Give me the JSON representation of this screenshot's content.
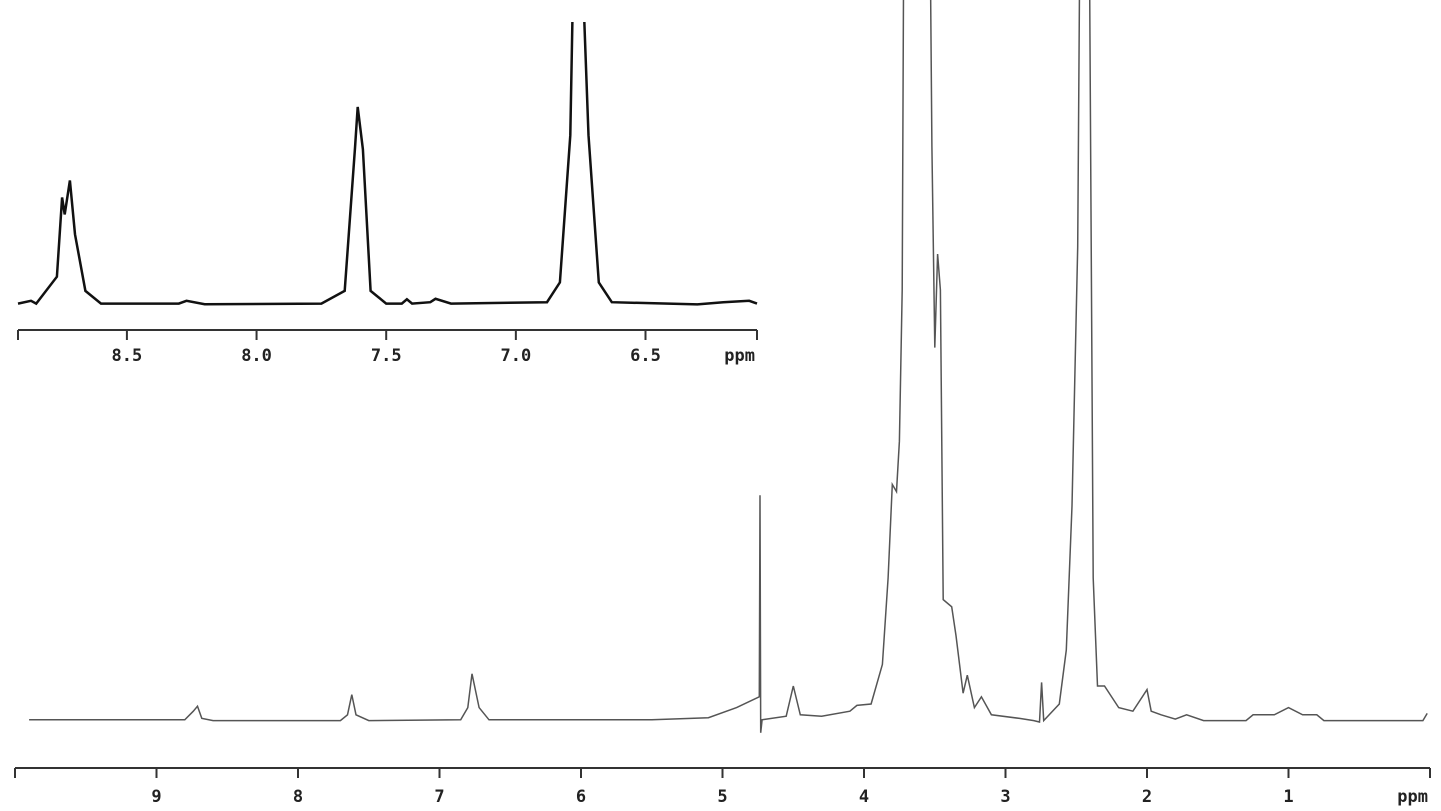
{
  "chart_data": [
    {
      "type": "line",
      "xlabel": "ppm",
      "color": "#555555",
      "xlim": [
        10,
        0
      ],
      "ylim": [
        0,
        100
      ],
      "xticks": [
        9,
        8,
        7,
        6,
        5,
        4,
        3,
        2,
        1
      ],
      "x": [
        9.9,
        8.8,
        8.74,
        8.71,
        8.68,
        8.6,
        7.7,
        7.65,
        7.62,
        7.59,
        7.5,
        6.85,
        6.8,
        6.77,
        6.72,
        6.65,
        5.5,
        5.1,
        4.9,
        4.74,
        4.735,
        4.73,
        4.72,
        4.55,
        4.5,
        4.45,
        4.3,
        4.1,
        4.05,
        3.95,
        3.87,
        3.83,
        3.8,
        3.77,
        3.75,
        3.73,
        3.71,
        3.55,
        3.52,
        3.5,
        3.48,
        3.46,
        3.44,
        3.38,
        3.35,
        3.3,
        3.27,
        3.22,
        3.17,
        3.1,
        2.9,
        2.8,
        2.76,
        2.745,
        2.73,
        2.62,
        2.57,
        2.53,
        2.49,
        2.46,
        2.42,
        2.38,
        2.35,
        2.3,
        2.2,
        2.1,
        2.0,
        1.97,
        1.9,
        1.8,
        1.72,
        1.6,
        1.3,
        1.25,
        1.1,
        1.0,
        0.9,
        0.8,
        0.75,
        0.3,
        0.05,
        0.02
      ],
      "values": [
        0.3,
        0.3,
        1.5,
        2.2,
        0.5,
        0.2,
        0.2,
        1,
        3.8,
        1,
        0.2,
        0.3,
        2,
        6.7,
        2,
        0.3,
        0.3,
        0.6,
        2,
        3.5,
        31.5,
        -1.5,
        0.3,
        0.8,
        5,
        1,
        0.8,
        1.5,
        2.3,
        2.5,
        8,
        20,
        33,
        32,
        39,
        60,
        150,
        150,
        80,
        52,
        65,
        60,
        17,
        16,
        12,
        4,
        6.5,
        2,
        3.5,
        1,
        0.5,
        0.2,
        0,
        5.5,
        0.2,
        2.5,
        10,
        30,
        66,
        150,
        150,
        20,
        5,
        5,
        2,
        1.5,
        4.5,
        1.5,
        1,
        0.4,
        1,
        0.2,
        0.2,
        1,
        1,
        2,
        1,
        1,
        0.2,
        0.2,
        0.2,
        1.2
      ]
    },
    {
      "type": "line",
      "xlabel": "ppm",
      "color": "#111111",
      "xlim": [
        8.92,
        6.07
      ],
      "ylim": [
        0,
        100
      ],
      "xticks": [
        8.5,
        {
          "value": 8,
          "label": "8.0"
        },
        7.5,
        {
          "value": 7,
          "label": "7.0"
        },
        6.5
      ],
      "x": [
        8.92,
        8.87,
        8.85,
        8.77,
        8.75,
        8.74,
        8.72,
        8.7,
        8.66,
        8.6,
        8.3,
        8.27,
        8.2,
        7.75,
        7.66,
        7.62,
        7.61,
        7.59,
        7.56,
        7.54,
        7.5,
        7.44,
        7.42,
        7.4,
        7.33,
        7.31,
        7.25,
        6.88,
        6.83,
        6.79,
        6.78,
        6.74,
        6.72,
        6.68,
        6.63,
        6.3,
        6.2,
        6.1,
        6.07
      ],
      "values": [
        0.5,
        1.5,
        0.5,
        10,
        38,
        32,
        44,
        25,
        5,
        0.5,
        0.5,
        1.5,
        0.3,
        0.5,
        5,
        56,
        70,
        55,
        5,
        3.5,
        0.5,
        0.5,
        2,
        0.5,
        1,
        2.2,
        0.5,
        1,
        8,
        60,
        110,
        110,
        60,
        8,
        1,
        0.2,
        1,
        1.5,
        0.5
      ]
    }
  ]
}
